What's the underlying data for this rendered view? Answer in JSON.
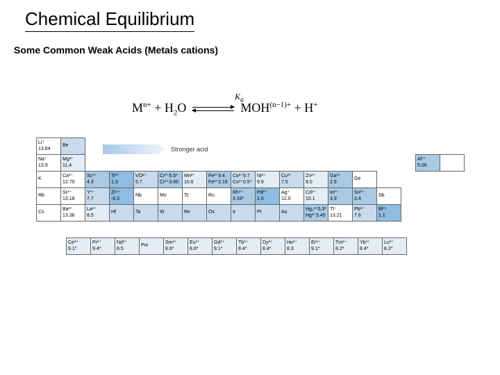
{
  "title": "Chemical Equilibrium",
  "subtitle": "Some Common Weak Acids (Metals cations)",
  "equation": {
    "lhs_species": "M",
    "lhs_charge": "n+",
    "plus": " + ",
    "water": "H",
    "water_sub": "2",
    "water_o": "O",
    "ka": "K",
    "ka_sub": "a",
    "rhs_species": "MOH",
    "rhs_charge": "(n−1)+",
    "proton": "H",
    "proton_charge": "+"
  },
  "stronger_label": "Stronger acid",
  "table_style": {
    "border_color": "#666666",
    "shades": [
      "#ffffff",
      "#e4edf5",
      "#c8dbed",
      "#a8cae5",
      "#8fbce0"
    ],
    "cell_font_size": 7
  },
  "main_rows": [
    {
      "left": [
        {
          "ion": "Li⁺",
          "val": "13.64",
          "s": 0
        },
        {
          "ion": "Be",
          "val": "",
          "s": 2
        }
      ],
      "right": []
    },
    {
      "left": [
        {
          "ion": "Na⁺",
          "val": "13.9",
          "s": 0
        },
        {
          "ion": "Mg²⁺",
          "val": "11.4",
          "s": 1
        }
      ],
      "right": [
        {
          "ion": "Al³⁺",
          "val": "5.00",
          "s": 3
        },
        {
          "ion": "",
          "val": "",
          "s": 0
        }
      ]
    },
    {
      "left": [
        {
          "ion": "K",
          "val": "",
          "s": 0
        },
        {
          "ion": "Ca²⁺",
          "val": "12.70",
          "s": 0
        },
        {
          "ion": "Sc³⁺",
          "val": "4.3",
          "s": 3
        },
        {
          "ion": "Ti³⁺",
          "val": "1.3",
          "s": 4
        },
        {
          "ion": "VO²⁺",
          "val": "5.7",
          "s": 2
        },
        {
          "ion": "Cr³⁺5.5*",
          "val": "Cr²⁺3.66",
          "s": 3
        },
        {
          "ion": "Mn²⁺",
          "val": "10.6",
          "s": 1
        },
        {
          "ion": "Fe³⁺9.4",
          "val": "Fe²⁺2.19",
          "s": 3
        },
        {
          "ion": "Co²⁺9.7",
          "val": "Co³⁺0.5*",
          "s": 2
        },
        {
          "ion": "Ni²⁺",
          "val": "9.9",
          "s": 1
        },
        {
          "ion": "Cu²⁺",
          "val": "7.5",
          "s": 2
        },
        {
          "ion": "Zn²⁺",
          "val": "9.0",
          "s": 1
        },
        {
          "ion": "Ga³⁺",
          "val": "2.6",
          "s": 3
        },
        {
          "ion": "Ge",
          "val": "",
          "s": 0
        }
      ],
      "right": []
    },
    {
      "left": [
        {
          "ion": "Rb",
          "val": "",
          "s": 0
        },
        {
          "ion": "Sr²⁺",
          "val": "13.18",
          "s": 0
        },
        {
          "ion": "Y³⁺",
          "val": "7.7",
          "s": 2
        },
        {
          "ion": "Zr⁴⁺",
          "val": "-0.3",
          "s": 4
        },
        {
          "ion": "Nb",
          "val": "",
          "s": 0
        },
        {
          "ion": "Mo",
          "val": "",
          "s": 0
        },
        {
          "ion": "Tc",
          "val": "",
          "s": 0
        },
        {
          "ion": "Ru",
          "val": "",
          "s": 0
        },
        {
          "ion": "Rh³⁺",
          "val": "3.33*",
          "s": 3
        },
        {
          "ion": "Pd²⁺",
          "val": "1.0",
          "s": 4
        },
        {
          "ion": "Ag⁺",
          "val": "12.0",
          "s": 0
        },
        {
          "ion": "Cd²⁺",
          "val": "10.1",
          "s": 1
        },
        {
          "ion": "In³⁺",
          "val": "3.9",
          "s": 3
        },
        {
          "ion": "Sn²⁺",
          "val": "3.4",
          "s": 3
        },
        {
          "ion": "Sb",
          "val": "",
          "s": 0
        }
      ],
      "right": []
    },
    {
      "left": [
        {
          "ion": "Cs",
          "val": "",
          "s": 0
        },
        {
          "ion": "Ba²⁺",
          "val": "13.36",
          "s": 0
        },
        {
          "ion": "La³⁺",
          "val": "8.5",
          "s": 1
        },
        {
          "ion": "Hf",
          "val": "",
          "s": 2
        },
        {
          "ion": "Ta",
          "val": "",
          "s": 2
        },
        {
          "ion": "W",
          "val": "",
          "s": 2
        },
        {
          "ion": "Re",
          "val": "",
          "s": 2
        },
        {
          "ion": "Os",
          "val": "",
          "s": 2
        },
        {
          "ion": "Ir",
          "val": "",
          "s": 2
        },
        {
          "ion": "Pt",
          "val": "",
          "s": 2
        },
        {
          "ion": "Au",
          "val": "",
          "s": 2
        },
        {
          "ion": "Hg₂²⁺5.3*",
          "val": "Hg²⁺3.40",
          "s": 3
        },
        {
          "ion": "Tl⁺",
          "val": "13.21",
          "s": 0
        },
        {
          "ion": "Pb²⁺",
          "val": "7.6",
          "s": 2
        },
        {
          "ion": "Bi³⁺",
          "val": "1.1",
          "s": 4
        }
      ],
      "right": []
    }
  ],
  "lan_row": [
    {
      "ion": "Ce³⁺",
      "val": "9.1*",
      "s": 1
    },
    {
      "ion": "Pr³⁺",
      "val": "9.4*",
      "s": 1
    },
    {
      "ion": "Nd³⁺",
      "val": "8.5",
      "s": 1
    },
    {
      "ion": "Pm",
      "val": "",
      "s": 1
    },
    {
      "ion": "Sm³⁺",
      "val": "8.6*",
      "s": 1
    },
    {
      "ion": "Eu³⁺",
      "val": "8.6*",
      "s": 1
    },
    {
      "ion": "Gd³⁺",
      "val": "9.1*",
      "s": 1
    },
    {
      "ion": "Tb³⁺",
      "val": "8.4*",
      "s": 1
    },
    {
      "ion": "Dy³⁺",
      "val": "8.4*",
      "s": 1
    },
    {
      "ion": "Ho³⁺",
      "val": "8.3",
      "s": 1
    },
    {
      "ion": "Er³⁺",
      "val": "9.1*",
      "s": 1
    },
    {
      "ion": "Tm³⁺",
      "val": "8.2*",
      "s": 1
    },
    {
      "ion": "Yb³⁺",
      "val": "8.4*",
      "s": 1
    },
    {
      "ion": "Lu³⁺",
      "val": "8.2*",
      "s": 1
    }
  ]
}
